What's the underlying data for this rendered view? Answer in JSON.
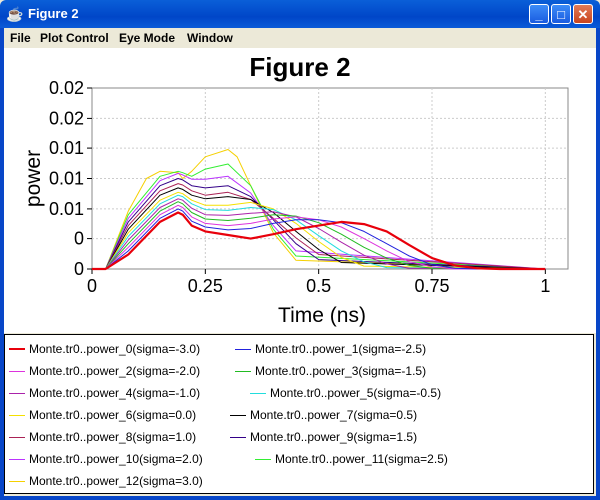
{
  "window": {
    "title": "Figure 2"
  },
  "menu": [
    "File",
    "Plot Control",
    "Eye Mode",
    "Window"
  ],
  "chart_data": {
    "type": "line",
    "title": "Figure 2",
    "xlabel": "Time (ns)",
    "ylabel": "power",
    "xlim": [
      0,
      1.05
    ],
    "ylim": [
      0,
      0.025
    ],
    "xticks": [
      "0",
      "0.25",
      "0.5",
      "0.75",
      "1"
    ],
    "yticks": [
      "0",
      "0",
      "0.01",
      "0.01",
      "0.01",
      "0.02",
      "0.02"
    ],
    "grid": true,
    "legend_position": "bottom",
    "series": [
      {
        "name": "Monte.tr0..power_0(sigma=-3.0)",
        "color": "#E8000B",
        "width": 2.2,
        "x": [
          0,
          0.03,
          0.08,
          0.15,
          0.19,
          0.2,
          0.22,
          0.25,
          0.3,
          0.35,
          0.4,
          0.45,
          0.5,
          0.55,
          0.6,
          0.65,
          0.7,
          0.75,
          0.8,
          0.85,
          0.9,
          1.0
        ],
        "y": [
          0,
          0,
          0.002,
          0.0065,
          0.0078,
          0.0075,
          0.006,
          0.0052,
          0.0047,
          0.0042,
          0.0048,
          0.0055,
          0.006,
          0.0065,
          0.0062,
          0.0052,
          0.0033,
          0.0015,
          0.0005,
          0.0001,
          0,
          0
        ]
      },
      {
        "name": "Monte.tr0..power_1(sigma=-2.5)",
        "color": "#2222DD",
        "width": 1,
        "x": [
          0,
          0.03,
          0.08,
          0.15,
          0.19,
          0.2,
          0.22,
          0.25,
          0.3,
          0.35,
          0.4,
          0.45,
          0.5,
          0.55,
          0.6,
          0.65,
          0.7,
          0.75,
          0.8,
          0.85,
          1.0
        ],
        "y": [
          0,
          0,
          0.0025,
          0.007,
          0.0083,
          0.008,
          0.0066,
          0.0058,
          0.0054,
          0.0056,
          0.0063,
          0.0068,
          0.0068,
          0.0064,
          0.0052,
          0.0035,
          0.0018,
          0.0006,
          0.0001,
          0,
          0
        ]
      },
      {
        "name": "Monte.tr0..power_2(sigma=-2.0)",
        "color": "#DD33DD",
        "width": 1,
        "x": [
          0,
          0.03,
          0.08,
          0.15,
          0.19,
          0.2,
          0.22,
          0.25,
          0.3,
          0.35,
          0.4,
          0.45,
          0.5,
          0.55,
          0.6,
          0.65,
          0.7,
          0.75,
          0.8,
          1.0
        ],
        "y": [
          0,
          0,
          0.003,
          0.0075,
          0.0088,
          0.0085,
          0.0072,
          0.0063,
          0.006,
          0.0063,
          0.0069,
          0.0072,
          0.0068,
          0.0058,
          0.0042,
          0.0025,
          0.001,
          0.0003,
          0,
          0
        ]
      },
      {
        "name": "Monte.tr0..power_3(sigma=-1.5)",
        "color": "#22BB22",
        "width": 1,
        "x": [
          0,
          0.03,
          0.08,
          0.15,
          0.19,
          0.2,
          0.22,
          0.25,
          0.3,
          0.35,
          0.4,
          0.45,
          0.5,
          0.55,
          0.6,
          0.65,
          0.7,
          0.75,
          1.0
        ],
        "y": [
          0,
          0,
          0.0035,
          0.008,
          0.0093,
          0.009,
          0.0078,
          0.0069,
          0.0067,
          0.007,
          0.0075,
          0.0073,
          0.0064,
          0.0048,
          0.003,
          0.0015,
          0.0005,
          0.0001,
          0
        ]
      },
      {
        "name": "Monte.tr0..power_4(sigma=-1.0)",
        "color": "#AA22AA",
        "width": 1,
        "x": [
          0,
          0.03,
          0.08,
          0.15,
          0.19,
          0.2,
          0.22,
          0.25,
          0.3,
          0.35,
          0.4,
          0.45,
          0.5,
          0.55,
          0.6,
          0.65,
          0.7,
          1.0
        ],
        "y": [
          0,
          0,
          0.004,
          0.0085,
          0.0097,
          0.0095,
          0.0084,
          0.0075,
          0.0074,
          0.0077,
          0.0079,
          0.0072,
          0.0056,
          0.0037,
          0.0019,
          0.0007,
          0.0001,
          0
        ]
      },
      {
        "name": "Monte.tr0..power_5(sigma=-0.5)",
        "color": "#22DDDD",
        "width": 1,
        "x": [
          0,
          0.03,
          0.08,
          0.15,
          0.19,
          0.2,
          0.22,
          0.25,
          0.3,
          0.35,
          0.4,
          0.45,
          0.5,
          0.55,
          0.6,
          0.65,
          1.0
        ],
        "y": [
          0,
          0,
          0.0045,
          0.009,
          0.0102,
          0.01,
          0.009,
          0.0082,
          0.0081,
          0.0085,
          0.0082,
          0.0068,
          0.0046,
          0.0025,
          0.001,
          0.0002,
          0
        ]
      },
      {
        "name": "Monte.tr0..power_6(sigma=0.0)",
        "color": "#F5E000",
        "width": 1,
        "x": [
          0,
          0.03,
          0.08,
          0.15,
          0.19,
          0.2,
          0.22,
          0.25,
          0.3,
          0.35,
          0.4,
          0.45,
          0.5,
          0.55,
          0.6,
          1.0
        ],
        "y": [
          0,
          0,
          0.005,
          0.0095,
          0.0106,
          0.0104,
          0.0095,
          0.0088,
          0.0088,
          0.0092,
          0.0083,
          0.0063,
          0.0038,
          0.0016,
          0.0004,
          0
        ]
      },
      {
        "name": "Monte.tr0..power_7(sigma=0.5)",
        "color": "#000000",
        "width": 1,
        "x": [
          0,
          0.03,
          0.08,
          0.15,
          0.19,
          0.2,
          0.22,
          0.25,
          0.3,
          0.35,
          0.4,
          0.45,
          0.5,
          0.55,
          1.0
        ],
        "y": [
          0,
          0,
          0.0055,
          0.0102,
          0.0112,
          0.011,
          0.0102,
          0.0097,
          0.01,
          0.0096,
          0.0078,
          0.0052,
          0.0027,
          0.0009,
          0
        ]
      },
      {
        "name": "Monte.tr0..power_8(sigma=1.0)",
        "color": "#AA2255",
        "width": 1,
        "x": [
          0,
          0.03,
          0.08,
          0.15,
          0.19,
          0.2,
          0.22,
          0.25,
          0.3,
          0.35,
          0.4,
          0.45,
          0.5,
          1.0
        ],
        "y": [
          0,
          0,
          0.006,
          0.0108,
          0.0118,
          0.0116,
          0.0108,
          0.0102,
          0.0106,
          0.0096,
          0.007,
          0.0043,
          0.002,
          0
        ]
      },
      {
        "name": "Monte.tr0..power_9(sigma=1.5)",
        "color": "#330088",
        "width": 1,
        "x": [
          0,
          0.03,
          0.08,
          0.15,
          0.19,
          0.2,
          0.22,
          0.25,
          0.3,
          0.35,
          0.4,
          0.45,
          0.5,
          1.0
        ],
        "y": [
          0,
          0,
          0.0065,
          0.0115,
          0.0125,
          0.0123,
          0.0115,
          0.0112,
          0.0115,
          0.01,
          0.0068,
          0.0035,
          0.0013,
          0
        ]
      },
      {
        "name": "Monte.tr0..power_10(sigma=2.0)",
        "color": "#BB33FF",
        "width": 1,
        "x": [
          0,
          0.03,
          0.08,
          0.15,
          0.19,
          0.2,
          0.22,
          0.25,
          0.3,
          0.35,
          0.4,
          0.45,
          1.0
        ],
        "y": [
          0,
          0,
          0.007,
          0.0122,
          0.0132,
          0.013,
          0.0124,
          0.0124,
          0.0128,
          0.0105,
          0.006,
          0.0025,
          0
        ]
      },
      {
        "name": "Monte.tr0..power_11(sigma=2.5)",
        "color": "#33EE33",
        "width": 1,
        "x": [
          0,
          0.03,
          0.08,
          0.15,
          0.19,
          0.2,
          0.22,
          0.25,
          0.3,
          0.35,
          0.4,
          0.45,
          1.0
        ],
        "y": [
          0,
          0,
          0.0075,
          0.0128,
          0.0135,
          0.0133,
          0.0128,
          0.0138,
          0.0145,
          0.0115,
          0.0055,
          0.0018,
          0
        ]
      },
      {
        "name": "Monte.tr0..power_12(sigma=3.0)",
        "color": "#F5D000",
        "width": 1,
        "x": [
          0,
          0.03,
          0.08,
          0.12,
          0.15,
          0.19,
          0.2,
          0.22,
          0.25,
          0.3,
          0.32,
          0.35,
          0.4,
          0.45,
          1.0
        ],
        "y": [
          0,
          0,
          0.008,
          0.0125,
          0.0135,
          0.0133,
          0.0125,
          0.0135,
          0.0155,
          0.0165,
          0.0155,
          0.0115,
          0.005,
          0.0012,
          0
        ]
      }
    ]
  }
}
